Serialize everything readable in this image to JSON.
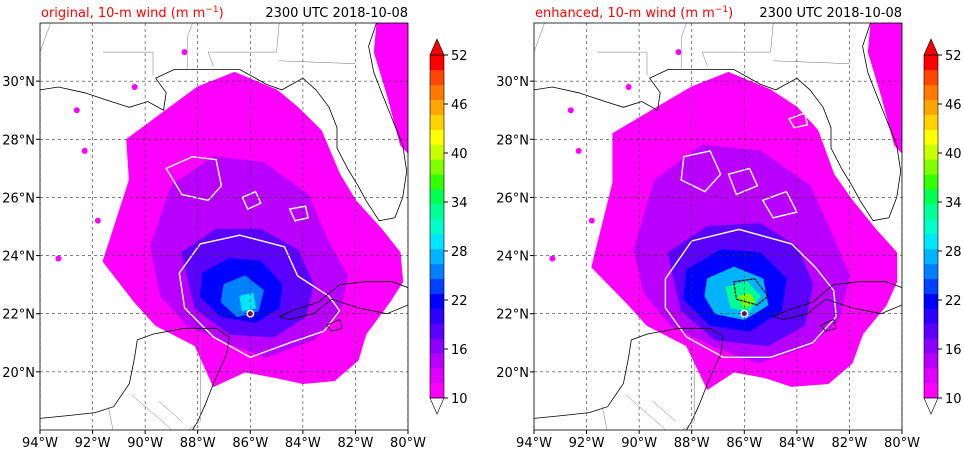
{
  "panels": [
    {
      "title_left": "original, 10-m wind (m m",
      "title_sup": "−1",
      "title_close": ")",
      "title_right": "2300 UTC 2018-10-08"
    },
    {
      "title_left": "enhanced, 10-m wind (m m",
      "title_sup": "−1",
      "title_close": ")",
      "title_right": "2300 UTC 2018-10-08"
    }
  ],
  "map": {
    "lon_range": [
      -94,
      -80
    ],
    "lat_range": [
      18,
      32
    ],
    "lon_ticks": [
      {
        "v": -94,
        "label": "94°W"
      },
      {
        "v": -92,
        "label": "92°W"
      },
      {
        "v": -90,
        "label": "90°W"
      },
      {
        "v": -88,
        "label": "88°W"
      },
      {
        "v": -86,
        "label": "86°W"
      },
      {
        "v": -84,
        "label": "84°W"
      },
      {
        "v": -82,
        "label": "82°W"
      },
      {
        "v": -80,
        "label": "80°W"
      }
    ],
    "lat_ticks": [
      {
        "v": 20,
        "label": "20°N"
      },
      {
        "v": 22,
        "label": "22°N"
      },
      {
        "v": 24,
        "label": "24°N"
      },
      {
        "v": 26,
        "label": "26°N"
      },
      {
        "v": 28,
        "label": "28°N"
      },
      {
        "v": 30,
        "label": "30°N"
      }
    ],
    "grid": "dashed"
  },
  "colorbar": {
    "labels": [
      "10",
      "16",
      "22",
      "28",
      "34",
      "40",
      "46",
      "52"
    ],
    "colors": [
      "#ff00ff",
      "#e100ff",
      "#b900ff",
      "#8c00ff",
      "#5a00ff",
      "#2b00ff",
      "#0000ff",
      "#0040ff",
      "#0080ff",
      "#00b4ff",
      "#00e6ff",
      "#00ffc8",
      "#00ff96",
      "#00ff50",
      "#32ff00",
      "#80ff00",
      "#c8ff00",
      "#ffff00",
      "#ffd200",
      "#ffa500",
      "#ff7800",
      "#ff4600",
      "#ff0000"
    ],
    "extend": "both"
  },
  "colors": {
    "title_red": "#ff0000",
    "coast": "#000000",
    "contour": "#ffffff"
  }
}
